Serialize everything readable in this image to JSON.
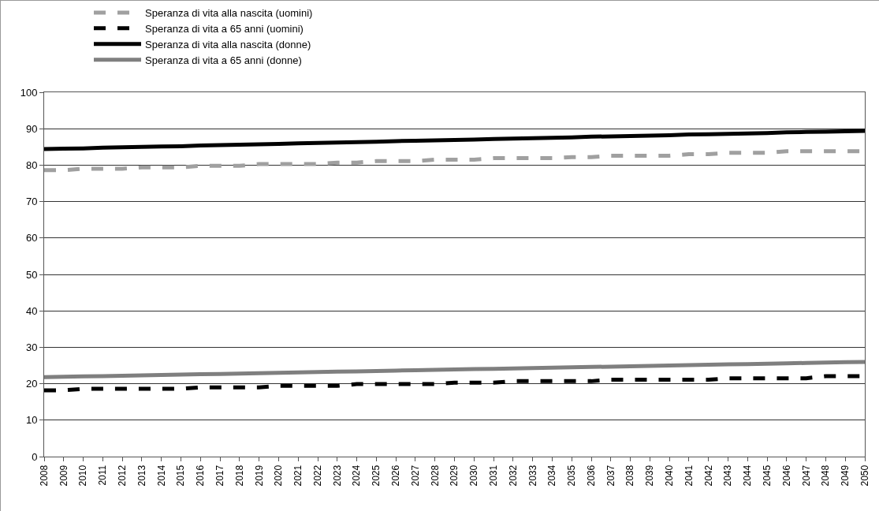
{
  "chart_data": {
    "type": "line",
    "categories": [
      "2008",
      "2009",
      "2010",
      "2011",
      "2012",
      "2013",
      "2014",
      "2015",
      "2016",
      "2017",
      "2018",
      "2019",
      "2020",
      "2021",
      "2022",
      "2023",
      "2024",
      "2025",
      "2026",
      "2027",
      "2028",
      "2029",
      "2030",
      "2031",
      "2032",
      "2033",
      "2034",
      "2035",
      "2036",
      "2037",
      "2038",
      "2039",
      "2040",
      "2041",
      "2042",
      "2043",
      "2044",
      "2045",
      "2046",
      "2047",
      "2048",
      "2049",
      "2050"
    ],
    "series": [
      {
        "name": "Speranza di vita alla nascita (uomini)",
        "color": "#a0a0a0",
        "line_style": "dashed",
        "values": [
          78.6,
          78.6,
          79.0,
          79.0,
          79.0,
          79.4,
          79.4,
          79.4,
          79.8,
          79.8,
          79.8,
          80.3,
          80.3,
          80.3,
          80.3,
          80.7,
          80.7,
          81.1,
          81.1,
          81.1,
          81.5,
          81.5,
          81.5,
          81.9,
          81.9,
          81.9,
          81.9,
          82.2,
          82.2,
          82.6,
          82.6,
          82.6,
          82.6,
          83.0,
          83.0,
          83.4,
          83.4,
          83.4,
          83.8,
          83.8,
          83.8,
          83.8,
          83.8
        ]
      },
      {
        "name": "Speranza di vita a 65 anni (uomini)",
        "color": "#000000",
        "line_style": "dashed",
        "values": [
          18.2,
          18.2,
          18.6,
          18.6,
          18.6,
          18.6,
          18.6,
          18.6,
          19.0,
          19.0,
          19.0,
          19.0,
          19.4,
          19.4,
          19.4,
          19.4,
          19.9,
          19.9,
          19.9,
          19.9,
          19.9,
          20.3,
          20.3,
          20.3,
          20.7,
          20.7,
          20.7,
          20.7,
          20.7,
          21.1,
          21.1,
          21.1,
          21.1,
          21.1,
          21.1,
          21.5,
          21.5,
          21.5,
          21.5,
          21.5,
          22.1,
          22.1,
          22.1
        ]
      },
      {
        "name": "Speranza di vita alla nascita (donne)",
        "color": "#000000",
        "line_style": "solid",
        "values": [
          84.4,
          84.5,
          84.6,
          84.8,
          84.9,
          85.0,
          85.1,
          85.2,
          85.4,
          85.5,
          85.6,
          85.7,
          85.8,
          86.0,
          86.1,
          86.2,
          86.3,
          86.4,
          86.6,
          86.7,
          86.8,
          86.9,
          87.0,
          87.2,
          87.3,
          87.4,
          87.5,
          87.6,
          87.8,
          87.9,
          88.0,
          88.1,
          88.2,
          88.4,
          88.5,
          88.6,
          88.7,
          88.8,
          89.0,
          89.1,
          89.2,
          89.3,
          89.4
        ]
      },
      {
        "name": "Speranza di vita a 65 anni (donne)",
        "color": "#7f7f7f",
        "line_style": "solid",
        "values": [
          21.8,
          21.9,
          22.0,
          22.1,
          22.2,
          22.3,
          22.4,
          22.5,
          22.6,
          22.7,
          22.8,
          22.9,
          23.0,
          23.1,
          23.2,
          23.3,
          23.4,
          23.5,
          23.6,
          23.7,
          23.8,
          23.9,
          24.0,
          24.1,
          24.2,
          24.3,
          24.4,
          24.5,
          24.6,
          24.7,
          24.8,
          24.9,
          25.0,
          25.1,
          25.2,
          25.3,
          25.4,
          25.5,
          25.6,
          25.7,
          25.8,
          25.9,
          26.0
        ]
      }
    ],
    "ylim": [
      0,
      100
    ],
    "yticks": [
      0,
      10,
      20,
      30,
      40,
      50,
      60,
      70,
      80,
      90,
      100
    ],
    "grid": "y",
    "legend": "top",
    "marker": "none"
  }
}
